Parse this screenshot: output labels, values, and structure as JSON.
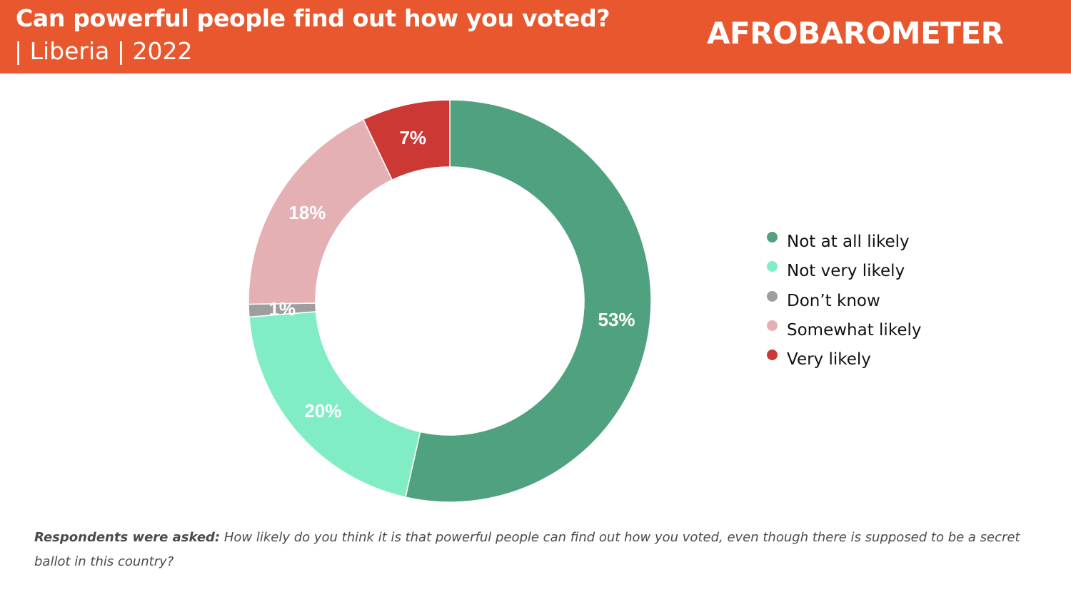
{
  "header": {
    "title": "Can powerful people find out how you voted?",
    "subtitle": "| Liberia | 2022",
    "logo_text": "AFROBAROMETER",
    "background": "#e8572d"
  },
  "chart_data": {
    "type": "pie",
    "title": "Can powerful people find out how you voted?",
    "subtitle": "| Liberia | 2022",
    "donut": true,
    "legend_position": "right",
    "categories": [
      "Not at all likely",
      "Not very likely",
      "Don’t know",
      "Somewhat likely",
      "Very likely"
    ],
    "values": [
      53,
      20,
      1,
      18,
      7
    ],
    "labels": [
      "53%",
      "20%",
      "1%",
      "18%",
      "7%"
    ],
    "colors": [
      "#4fa17f",
      "#80edc4",
      "#9e9e9e",
      "#e4b0b4",
      "#cc3834"
    ]
  },
  "footnote": {
    "lead": "Respondents were asked:",
    "text": " How likely do you think it is that powerful people can find out how you voted, even though there is supposed to be a secret ballot in this country?"
  }
}
